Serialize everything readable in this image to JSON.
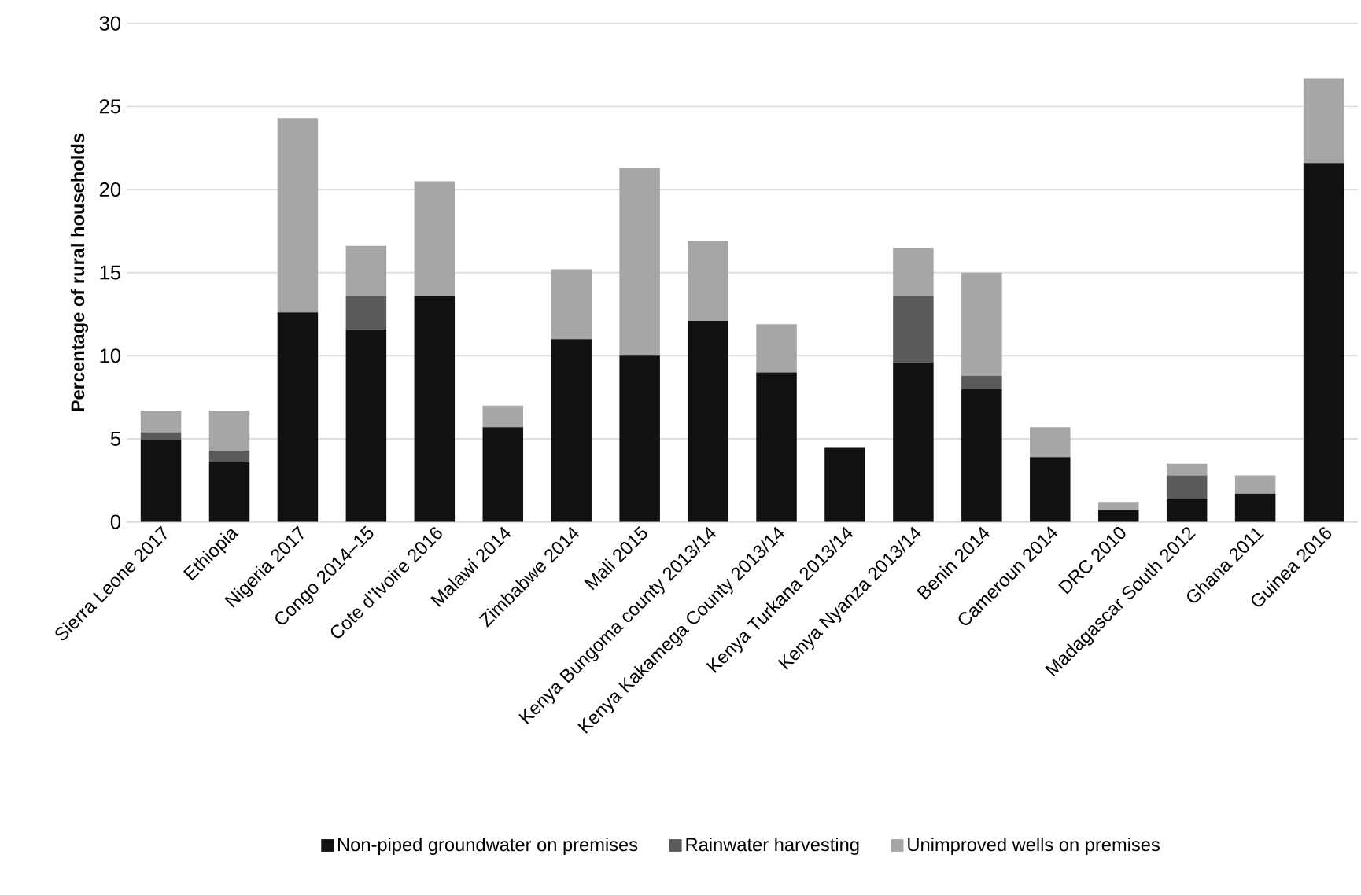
{
  "chart_data": {
    "type": "bar",
    "stacked": true,
    "ylabel": "Percentage of rural households",
    "categories": [
      "Sierra Leone 2017",
      "Ethiopia",
      "Nigeria 2017",
      "Congo 2014–15",
      "Cote d’Ivoire 2016",
      "Malawi 2014",
      "Zimbabwe 2014",
      "Mali 2015",
      "Kenya Bungoma county 2013/14",
      "Kenya  Kakamega County 2013/14",
      "Kenya Turkana 2013/14",
      "Kenya Nyanza 2013/14",
      "Benin 2014",
      "Cameroun 2014",
      "DRC 2010",
      "Madagascar South 2012",
      "Ghana 2011",
      "Guinea 2016"
    ],
    "series": [
      {
        "name": "Non-piped groundwater on premises",
        "color": "#111111",
        "values": [
          4.9,
          3.6,
          12.6,
          11.6,
          13.6,
          5.7,
          11.0,
          10.0,
          12.1,
          9.0,
          4.5,
          9.6,
          8.0,
          3.9,
          0.7,
          1.4,
          1.7,
          21.6
        ]
      },
      {
        "name": "Rainwater harvesting",
        "color": "#5a5a5a",
        "values": [
          0.5,
          0.7,
          0,
          2.0,
          0,
          0,
          0,
          0,
          0,
          0,
          0,
          4.0,
          0.8,
          0,
          0,
          1.4,
          0,
          0
        ]
      },
      {
        "name": "Unimproved wells on premises",
        "color": "#a6a6a6",
        "values": [
          1.3,
          2.4,
          11.7,
          3.0,
          6.9,
          1.3,
          4.2,
          11.3,
          4.8,
          2.9,
          0,
          2.9,
          6.2,
          1.8,
          0.5,
          0.7,
          1.1,
          5.1
        ]
      }
    ],
    "ylim": [
      0,
      30
    ],
    "yticks": [
      0,
      5,
      10,
      15,
      20,
      25,
      30
    ],
    "grid": "y",
    "legend": "bottom"
  }
}
